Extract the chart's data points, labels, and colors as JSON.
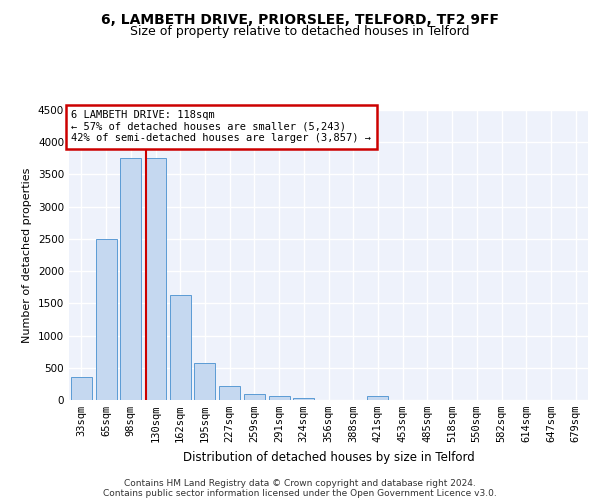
{
  "title1": "6, LAMBETH DRIVE, PRIORSLEE, TELFORD, TF2 9FF",
  "title2": "Size of property relative to detached houses in Telford",
  "xlabel": "Distribution of detached houses by size in Telford",
  "ylabel": "Number of detached properties",
  "footer1": "Contains HM Land Registry data © Crown copyright and database right 2024.",
  "footer2": "Contains public sector information licensed under the Open Government Licence v3.0.",
  "categories": [
    "33sqm",
    "65sqm",
    "98sqm",
    "130sqm",
    "162sqm",
    "195sqm",
    "227sqm",
    "259sqm",
    "291sqm",
    "324sqm",
    "356sqm",
    "388sqm",
    "421sqm",
    "453sqm",
    "485sqm",
    "518sqm",
    "550sqm",
    "582sqm",
    "614sqm",
    "647sqm",
    "679sqm"
  ],
  "values": [
    350,
    2500,
    3750,
    3750,
    1625,
    575,
    225,
    100,
    55,
    30,
    0,
    0,
    55,
    0,
    0,
    0,
    0,
    0,
    0,
    0,
    0
  ],
  "bar_color": "#c5d8f0",
  "bar_edge_color": "#5b9bd5",
  "vline_color": "#cc0000",
  "annotation_text": "6 LAMBETH DRIVE: 118sqm\n← 57% of detached houses are smaller (5,243)\n42% of semi-detached houses are larger (3,857) →",
  "annotation_box_color": "white",
  "annotation_box_edge": "#cc0000",
  "ylim": [
    0,
    4500
  ],
  "yticks": [
    0,
    500,
    1000,
    1500,
    2000,
    2500,
    3000,
    3500,
    4000,
    4500
  ],
  "background_color": "#eef2fb",
  "grid_color": "#ffffff",
  "title1_fontsize": 10,
  "title2_fontsize": 9,
  "xlabel_fontsize": 8.5,
  "ylabel_fontsize": 8,
  "tick_fontsize": 7.5,
  "footer_fontsize": 6.5
}
